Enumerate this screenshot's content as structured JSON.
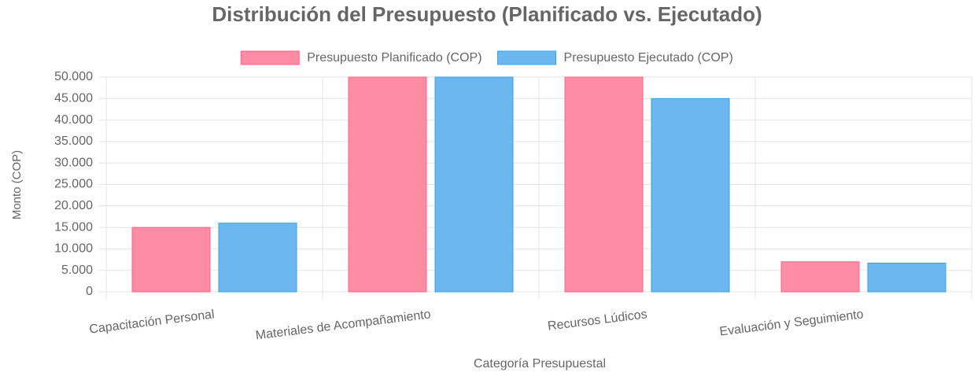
{
  "chart_data": {
    "type": "bar",
    "title": "Distribución del Presupuesto (Planificado vs. Ejecutado)",
    "x_label": "Categoría Presupuestal",
    "y_label": "Monto (COP)",
    "categories": [
      "Capacitación Personal",
      "Materiales de Acompañamiento",
      "Recursos Lúdicos",
      "Evaluación y Seguimiento"
    ],
    "series": [
      {
        "name": "Presupuesto Planificado (COP)",
        "color": "#ff8ca5",
        "border": "#ff6384",
        "values": [
          15000,
          50000,
          50000,
          7000
        ]
      },
      {
        "name": "Presupuesto Ejecutado (COP)",
        "color": "#6cb8ee",
        "border": "#36a2eb",
        "values": [
          16000,
          50000,
          45000,
          6700
        ]
      }
    ],
    "ylim": [
      0,
      50000
    ],
    "yticks": [
      0,
      {
        "value": 5000,
        "label": "5.000"
      },
      {
        "value": 10000,
        "label": "10.000"
      },
      {
        "value": 15000,
        "label": "15.000"
      },
      {
        "value": 20000,
        "label": "20.000"
      },
      {
        "value": 25000,
        "label": "25.000"
      },
      {
        "value": 30000,
        "label": "30.000"
      },
      {
        "value": 35000,
        "label": "35.000"
      },
      {
        "value": 40000,
        "label": "40.000"
      },
      {
        "value": 45000,
        "label": "45.000"
      },
      {
        "value": 50000,
        "label": "50.000"
      }
    ],
    "grid": true,
    "legend": "top"
  }
}
